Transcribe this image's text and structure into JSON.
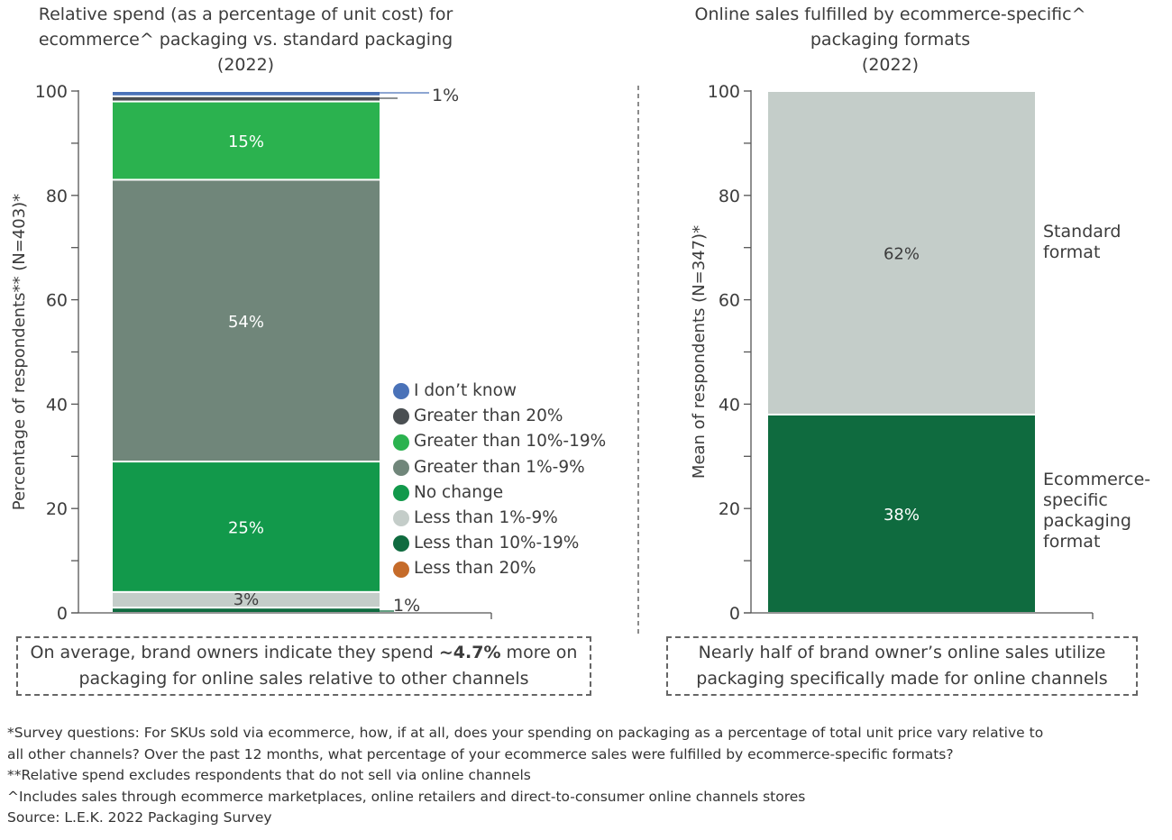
{
  "chart_data": [
    {
      "type": "bar",
      "stacked": true,
      "title": "Relative spend (as a percentage of unit cost) for ecommerce^ packaging vs. standard packaging (2022)",
      "title_lines": [
        "Relative spend (as a percentage of unit cost) for",
        "ecommerce^ packaging vs. standard packaging",
        "(2022)"
      ],
      "ylabel": "Percentage of respondents** (N=403)*",
      "ylim": [
        0,
        100
      ],
      "yticks": [
        0,
        20,
        40,
        60,
        80,
        100
      ],
      "ytick_labels": [
        "0",
        "20",
        "40",
        "60",
        "80",
        "100"
      ],
      "legend_position": "right",
      "series": [
        {
          "name": "Less than 10%-19%",
          "value": 1,
          "label": "1%",
          "label_outside": true,
          "color": "#0f6b3f",
          "text_color": "#3c3c3c"
        },
        {
          "name": "Less than 1%-9%",
          "value": 3,
          "label": "3%",
          "color": "#c4cdc9",
          "text_color": "#3c3c3c"
        },
        {
          "name": "No change",
          "value": 25,
          "label": "25%",
          "color": "#12994b",
          "text_color": "#ffffff"
        },
        {
          "name": "Greater than 1%-9%",
          "value": 54,
          "label": "54%",
          "color": "#70867a",
          "text_color": "#ffffff"
        },
        {
          "name": "Greater than 10%-19%",
          "value": 15,
          "label": "15%",
          "color": "#2bb24f",
          "text_color": "#ffffff"
        },
        {
          "name": "Greater than 20%",
          "value": 1,
          "label": "",
          "color": "#4a4f52"
        },
        {
          "name": "I don't know",
          "value": 1,
          "label": "1%",
          "label_outside": true,
          "color": "#4a72b8"
        },
        {
          "name": "Less than 20%",
          "value": 0,
          "label": "",
          "color": "#c56b2a"
        }
      ],
      "legend": [
        {
          "name": "I don’t know",
          "color": "#4a72b8"
        },
        {
          "name": "Greater than 20%",
          "color": "#4a4f52"
        },
        {
          "name": "Greater than 10%-19%",
          "color": "#2bb24f"
        },
        {
          "name": "Greater than 1%-9%",
          "color": "#70867a"
        },
        {
          "name": "No change",
          "color": "#12994b"
        },
        {
          "name": "Less than 1%-9%",
          "color": "#c4cdc9"
        },
        {
          "name": "Less than 10%-19%",
          "color": "#0f6b3f"
        },
        {
          "name": "Less than 20%",
          "color": "#c56b2a"
        }
      ],
      "callout": {
        "before": "On average, brand owners indicate they spend ",
        "bold": "~4.7%",
        "after": " more on packaging for online sales relative to other channels"
      }
    },
    {
      "type": "bar",
      "stacked": true,
      "title": "Online sales fulfilled by ecommerce-specific^ packaging formats (2022)",
      "title_lines": [
        "Online sales fulfilled by ecommerce-specific^",
        "packaging formats",
        "(2022)"
      ],
      "ylabel": "Mean of respondents (N=347)*",
      "ylim": [
        0,
        100
      ],
      "yticks": [
        0,
        20,
        40,
        60,
        80,
        100
      ],
      "ytick_labels": [
        "0",
        "20",
        "40",
        "60",
        "80",
        "100"
      ],
      "series": [
        {
          "name": "Ecommerce-specific packaging format",
          "side_label_lines": [
            "Ecommerce-",
            "specific",
            "packaging",
            "format"
          ],
          "value": 38,
          "label": "38%",
          "color": "#0f6b3f",
          "text_color": "#ffffff"
        },
        {
          "name": "Standard format",
          "side_label_lines": [
            "Standard",
            "format"
          ],
          "value": 62,
          "label": "62%",
          "color": "#c4cdc9",
          "text_color": "#3c3c3c"
        }
      ],
      "callout": {
        "text": "Nearly half of brand owner’s online sales utilize packaging specifically made for online channels"
      }
    }
  ],
  "notes": [
    "*Survey questions: For SKUs sold via ecommerce, how, if at all, does your spending on packaging as a percentage of total unit price vary relative to",
    "all other channels? Over the past 12 months, what percentage of your ecommerce sales were fulfilled by ecommerce-specific formats?",
    "**Relative spend excludes respondents that do not sell via online channels",
    "^Includes sales through ecommerce marketplaces, online retailers and direct-to-consumer online channels stores",
    "Source: L.E.K. 2022 Packaging Survey"
  ]
}
